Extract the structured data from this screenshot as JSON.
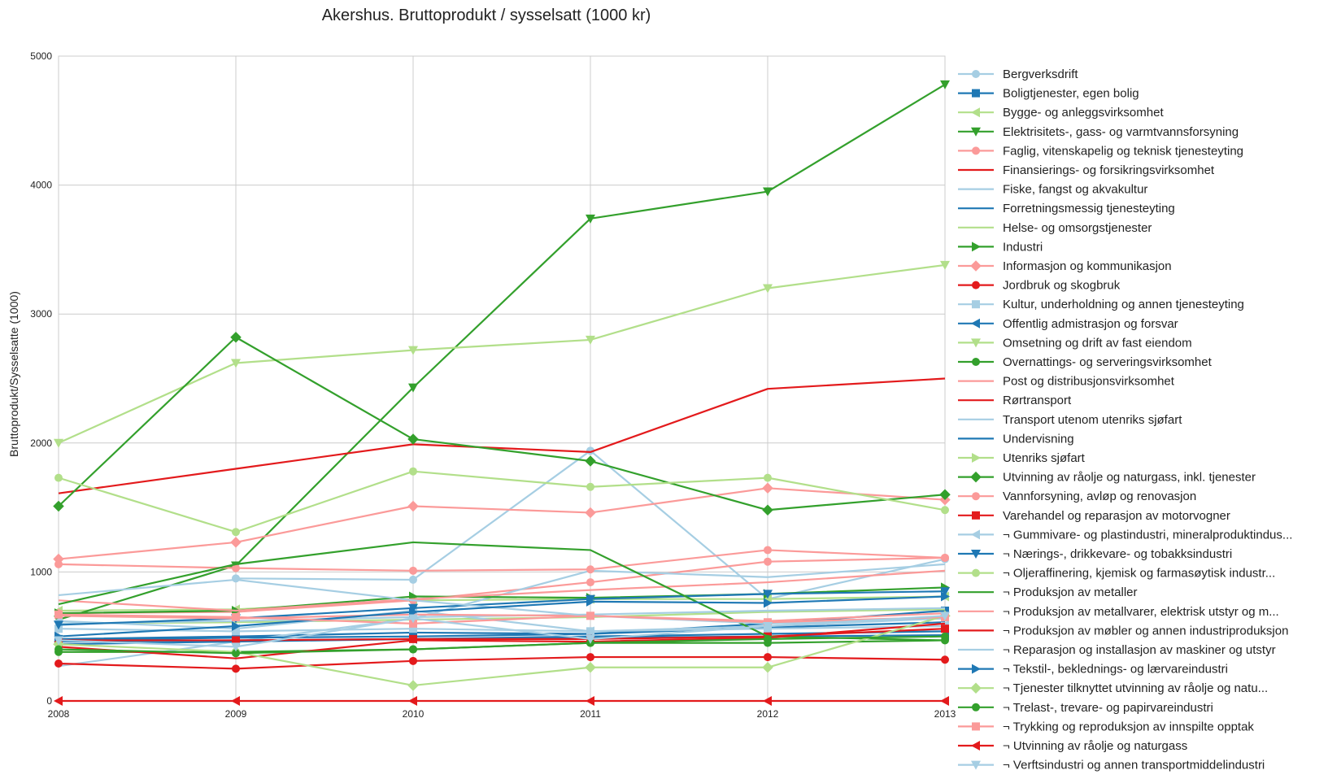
{
  "chart_data": {
    "type": "line",
    "title": "Akershus. Bruttoprodukt / sysselsatt (1000 kr)",
    "xlabel": "",
    "ylabel": "Bruttoprodukt/Sysselsatte (1000)",
    "x": [
      "2008",
      "2009",
      "2010",
      "2011",
      "2012",
      "2013"
    ],
    "ylim": [
      0,
      5000
    ],
    "yticks": [
      "0",
      "1000",
      "2000",
      "3000",
      "4000",
      "5000"
    ],
    "grid": true,
    "legend_position": "right",
    "series": [
      {
        "name": "Bergverksdrift",
        "color": "#a6cee3",
        "marker": "circle",
        "values": [
          null,
          950,
          940,
          1940,
          790,
          1100
        ]
      },
      {
        "name": "Boligtjenester, egen bolig",
        "color": "#1f78b4",
        "marker": "square",
        "values": [
          480,
          500,
          530,
          520,
          600,
          700
        ]
      },
      {
        "name": "Bygge- og anleggsvirksomhet",
        "color": "#b2df8a",
        "marker": "triangle-left",
        "values": [
          700,
          710,
          780,
          790,
          790,
          810
        ]
      },
      {
        "name": "Elektrisitets-, gass- og varmtvannsforsyning",
        "color": "#33a02c",
        "marker": "triangle-down",
        "values": [
          630,
          1050,
          2430,
          3740,
          3950,
          4780
        ]
      },
      {
        "name": "Faglig, vitenskapelig og teknisk tjenesteyting",
        "color": "#fb9a99",
        "marker": "circle",
        "values": [
          680,
          690,
          780,
          920,
          1080,
          1110
        ]
      },
      {
        "name": "Finansierings- og forsikringsvirksomhet",
        "color": "#e31a1c",
        "marker": "none",
        "values": [
          1610,
          1800,
          1990,
          1930,
          2420,
          2500
        ]
      },
      {
        "name": "Fiske, fangst og akvakultur",
        "color": "#a6cee3",
        "marker": "none",
        "values": [
          270,
          460,
          640,
          1010,
          960,
          1060
        ]
      },
      {
        "name": "Forretningsmessig tjenesteyting",
        "color": "#1f78b4",
        "marker": "none",
        "values": [
          470,
          490,
          500,
          520,
          570,
          610
        ]
      },
      {
        "name": "Helse- og omsorgstjenester",
        "color": "#b2df8a",
        "marker": "none",
        "values": [
          600,
          610,
          630,
          650,
          690,
          710
        ]
      },
      {
        "name": "Industri",
        "color": "#33a02c",
        "marker": "triangle-right",
        "values": [
          680,
          700,
          810,
          800,
          830,
          880
        ]
      },
      {
        "name": "Informasjon og kommunikasjon",
        "color": "#fb9a99",
        "marker": "diamond",
        "values": [
          1100,
          1230,
          1510,
          1460,
          1650,
          1560
        ]
      },
      {
        "name": "Jordbruk og skogbruk",
        "color": "#e31a1c",
        "marker": "circle",
        "values": [
          290,
          250,
          310,
          340,
          340,
          320
        ]
      },
      {
        "name": "Kultur, underholdning og annen tjenesteyting",
        "color": "#a6cee3",
        "marker": "square",
        "values": [
          560,
          540,
          560,
          540,
          560,
          580
        ]
      },
      {
        "name": "Offentlig admistrasjon og forsvar",
        "color": "#1f78b4",
        "marker": "triangle-left",
        "values": [
          460,
          470,
          480,
          490,
          500,
          510
        ]
      },
      {
        "name": "Omsetning og drift av fast eiendom",
        "color": "#b2df8a",
        "marker": "triangle-down",
        "values": [
          2000,
          2620,
          2720,
          2800,
          3200,
          3380
        ]
      },
      {
        "name": "Overnattings- og serveringsvirksomhet",
        "color": "#33a02c",
        "marker": "circle",
        "values": [
          380,
          380,
          400,
          450,
          450,
          470
        ]
      },
      {
        "name": "Post og distribusjonsvirksomhet",
        "color": "#fb9a99",
        "marker": "none",
        "values": [
          780,
          700,
          790,
          860,
          920,
          1010
        ]
      },
      {
        "name": "Rørtransport",
        "color": "#e31a1c",
        "marker": "none",
        "values": [
          null,
          null,
          null,
          null,
          null,
          null
        ]
      },
      {
        "name": "Transport utenom utenriks sjøfart",
        "color": "#a6cee3",
        "marker": "none",
        "values": [
          600,
          620,
          650,
          670,
          700,
          720
        ]
      },
      {
        "name": "Undervisning",
        "color": "#1f78b4",
        "marker": "none",
        "values": [
          440,
          460,
          480,
          500,
          520,
          540
        ]
      },
      {
        "name": "Utenriks sjøfart",
        "color": "#b2df8a",
        "marker": "triangle-right",
        "values": [
          null,
          null,
          null,
          null,
          null,
          null
        ]
      },
      {
        "name": "Utvinning av råolje og naturgass, inkl. tjenester",
        "color": "#33a02c",
        "marker": "diamond",
        "values": [
          1510,
          2820,
          2030,
          1860,
          1480,
          1600
        ]
      },
      {
        "name": "Vannforsyning, avløp og renovasjon",
        "color": "#fb9a99",
        "marker": "circle",
        "values": [
          1060,
          1030,
          1010,
          1020,
          1170,
          1110
        ]
      },
      {
        "name": "Varehandel og reparasjon av motorvogner",
        "color": "#e31a1c",
        "marker": "square",
        "values": [
          470,
          470,
          480,
          480,
          500,
          560
        ]
      },
      {
        "name": "¬ Gummivare- og plastindustri, mineralproduktindus...",
        "color": "#a6cee3",
        "marker": "triangle-left",
        "values": [
          620,
          560,
          700,
          540,
          580,
          640
        ]
      },
      {
        "name": "¬ Nærings-, drikkevare- og tobakksindustri",
        "color": "#1f78b4",
        "marker": "triangle-down",
        "values": [
          590,
          640,
          720,
          790,
          830,
          850
        ]
      },
      {
        "name": "¬ Oljeraffinering, kjemisk og farmasøytisk industr...",
        "color": "#b2df8a",
        "marker": "circle",
        "values": [
          1730,
          1310,
          1780,
          1660,
          1730,
          1480
        ]
      },
      {
        "name": "¬ Produksjon av metaller",
        "color": "#33a02c",
        "marker": "none",
        "values": [
          750,
          1060,
          1230,
          1170,
          500,
          470
        ]
      },
      {
        "name": "¬ Produksjon av metallvarer, elektrisk utstyr og m...",
        "color": "#fb9a99",
        "marker": "none",
        "values": [
          660,
          640,
          670,
          660,
          620,
          680
        ]
      },
      {
        "name": "¬ Produksjon av møbler og annen industriproduksjon",
        "color": "#e31a1c",
        "marker": "none",
        "values": [
          420,
          330,
          470,
          460,
          490,
          600
        ]
      },
      {
        "name": "¬ Reparasjon og installasjon av maskiner og utstyr",
        "color": "#a6cee3",
        "marker": "none",
        "values": [
          820,
          940,
          780,
          660,
          600,
          640
        ]
      },
      {
        "name": "¬ Tekstil-, beklednings- og lærvareindustri",
        "color": "#1f78b4",
        "marker": "triangle-right",
        "values": [
          500,
          580,
          690,
          770,
          760,
          810
        ]
      },
      {
        "name": "¬ Tjenester tilknyttet utvinning av råolje og natu...",
        "color": "#b2df8a",
        "marker": "diamond",
        "values": [
          440,
          380,
          120,
          260,
          260,
          660
        ]
      },
      {
        "name": "¬ Trelast-, trevare- og papirvareindustri",
        "color": "#33a02c",
        "marker": "circle",
        "values": [
          400,
          370,
          400,
          450,
          480,
          500
        ]
      },
      {
        "name": "¬ Trykking og reproduksjon av innspilte opptak",
        "color": "#fb9a99",
        "marker": "square",
        "values": [
          670,
          650,
          600,
          660,
          610,
          650
        ]
      },
      {
        "name": "¬ Utvinning av råolje og naturgass",
        "color": "#e31a1c",
        "marker": "triangle-left",
        "values": [
          0,
          0,
          0,
          0,
          0,
          0
        ]
      },
      {
        "name": "¬ Verftsindustri og annen transportmiddelindustri",
        "color": "#a6cee3",
        "marker": "triangle-down",
        "values": [
          470,
          420,
          640,
          480,
          580,
          660
        ]
      }
    ]
  }
}
